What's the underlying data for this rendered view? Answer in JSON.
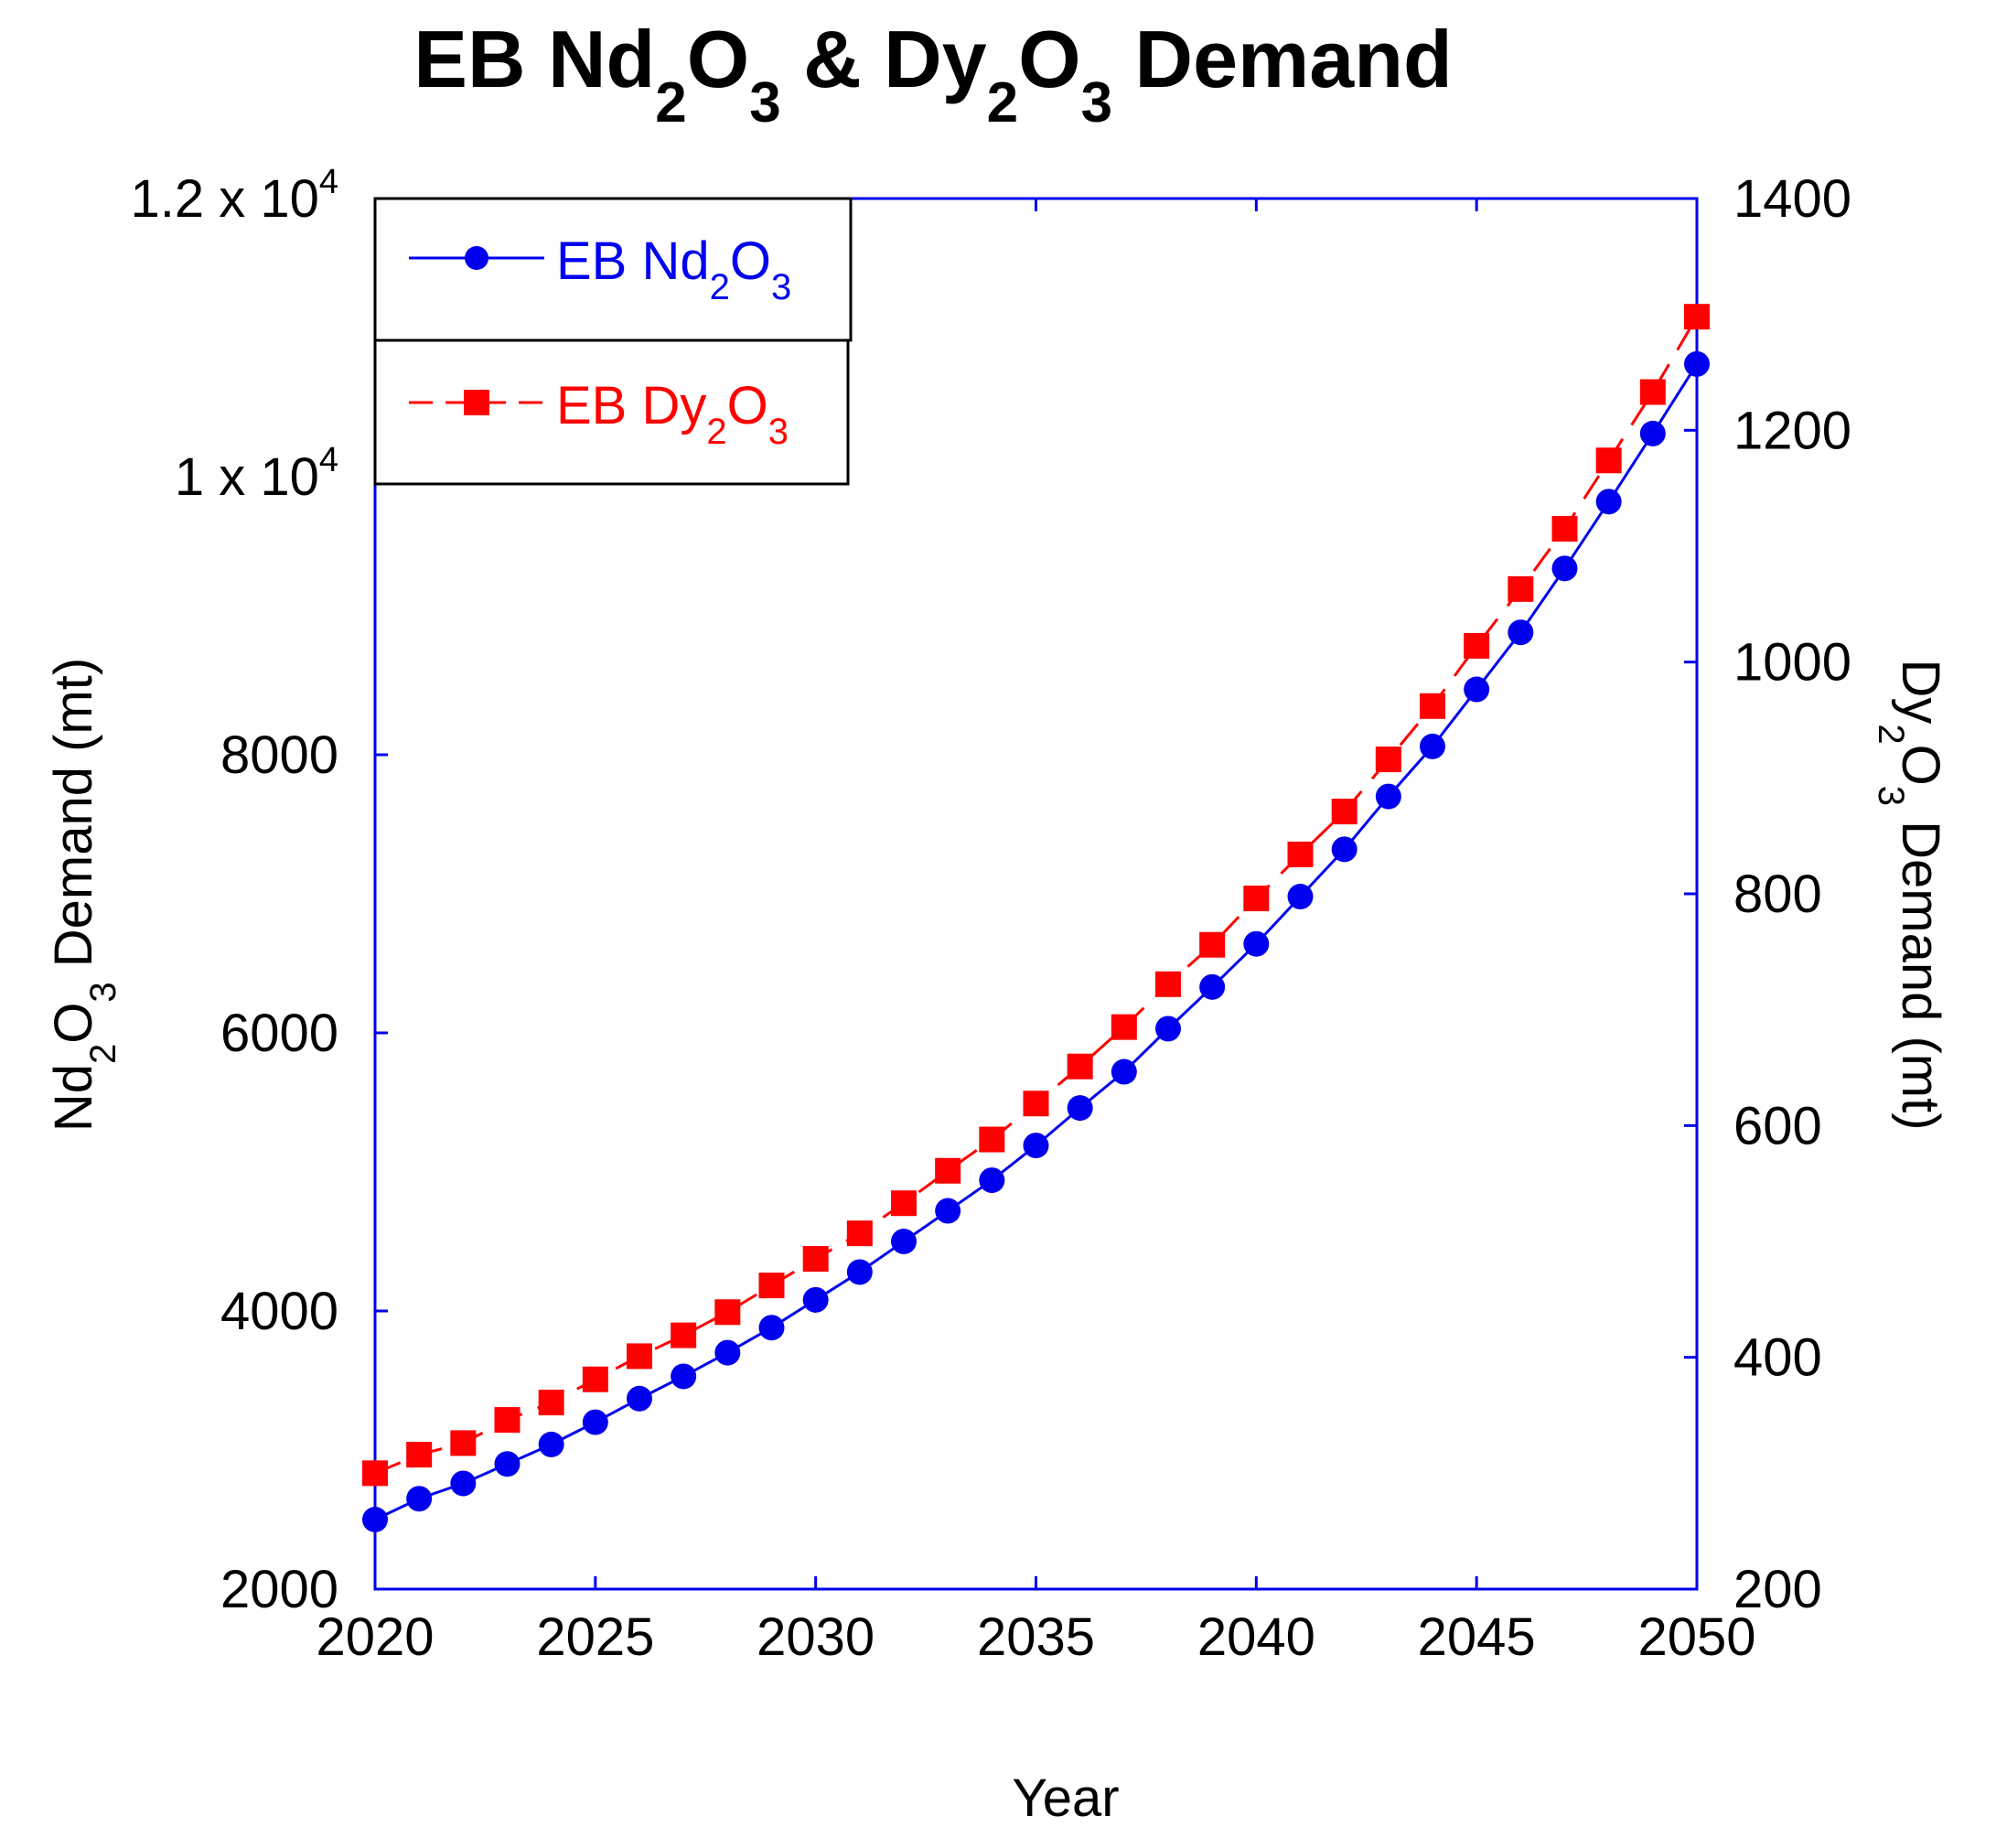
{
  "chart_data": {
    "type": "line",
    "title": {
      "prefix": "EB Nd",
      "sub1": "2",
      "mid1": "O",
      "sub2": "3",
      "mid2": " & Dy",
      "sub3": "2",
      "mid3": "O",
      "sub4": "3",
      "suffix": " Demand"
    },
    "xlabel": "Year",
    "ylabel_left": {
      "a": "Nd",
      "sub1": "2",
      "b": "O",
      "sub2": "3",
      "c": " Demand (mt)"
    },
    "ylabel_right": {
      "a": "Dy",
      "sub1": "2",
      "b": "O",
      "sub2": "3",
      "c": " Demand (mt)"
    },
    "xlim": [
      2020,
      2050
    ],
    "ylim_left": [
      2000,
      12000
    ],
    "ylim_right": [
      200,
      1400
    ],
    "x_ticks": [
      "2020",
      "2025",
      "2030",
      "2035",
      "2040",
      "2045",
      "2050"
    ],
    "y_left_ticks": [
      {
        "value": 2000,
        "label": "2000"
      },
      {
        "value": 4000,
        "label": "4000"
      },
      {
        "value": 6000,
        "label": "6000"
      },
      {
        "value": 8000,
        "label": "8000"
      },
      {
        "value": 10000,
        "label": "1 x 10",
        "exp": "4"
      },
      {
        "value": 12000,
        "label": "1.2 x 10",
        "exp": "4"
      }
    ],
    "y_right_ticks": [
      "200",
      "400",
      "600",
      "800",
      "1000",
      "1200",
      "1400"
    ],
    "grid": false,
    "legend_position": "top-left",
    "x": [
      2020,
      2021,
      2022,
      2023,
      2024,
      2025,
      2026,
      2027,
      2028,
      2029,
      2030,
      2031,
      2032,
      2033,
      2034,
      2035,
      2036,
      2037,
      2038,
      2039,
      2040,
      2041,
      2042,
      2043,
      2044,
      2045,
      2046,
      2047,
      2048,
      2049,
      2050
    ],
    "series": [
      {
        "name": "EB Nd2O3",
        "legend": {
          "a": "EB Nd",
          "sub1": "2",
          "b": "O",
          "sub2": "3"
        },
        "axis": "left",
        "color": "#0000ee",
        "marker": "circle",
        "line": "solid",
        "values": [
          2500,
          2650,
          2760,
          2900,
          3040,
          3200,
          3370,
          3530,
          3700,
          3880,
          4080,
          4280,
          4500,
          4720,
          4940,
          5190,
          5460,
          5720,
          6030,
          6330,
          6640,
          6980,
          7320,
          7700,
          8060,
          8470,
          8880,
          9340,
          9820,
          10310,
          10810
        ]
      },
      {
        "name": "EB Dy2O3",
        "legend": {
          "a": "EB Dy",
          "sub1": "2",
          "b": "O",
          "sub2": "3"
        },
        "axis": "right",
        "color": "#ff0000",
        "marker": "square",
        "line": "dashed",
        "values": [
          300,
          316,
          326,
          346,
          361,
          381,
          401,
          419,
          439,
          462,
          485,
          507,
          533,
          561,
          588,
          619,
          651,
          685,
          722,
          756,
          796,
          834,
          871,
          916,
          962,
          1014,
          1063,
          1115,
          1174,
          1233,
          1298
        ]
      }
    ]
  }
}
